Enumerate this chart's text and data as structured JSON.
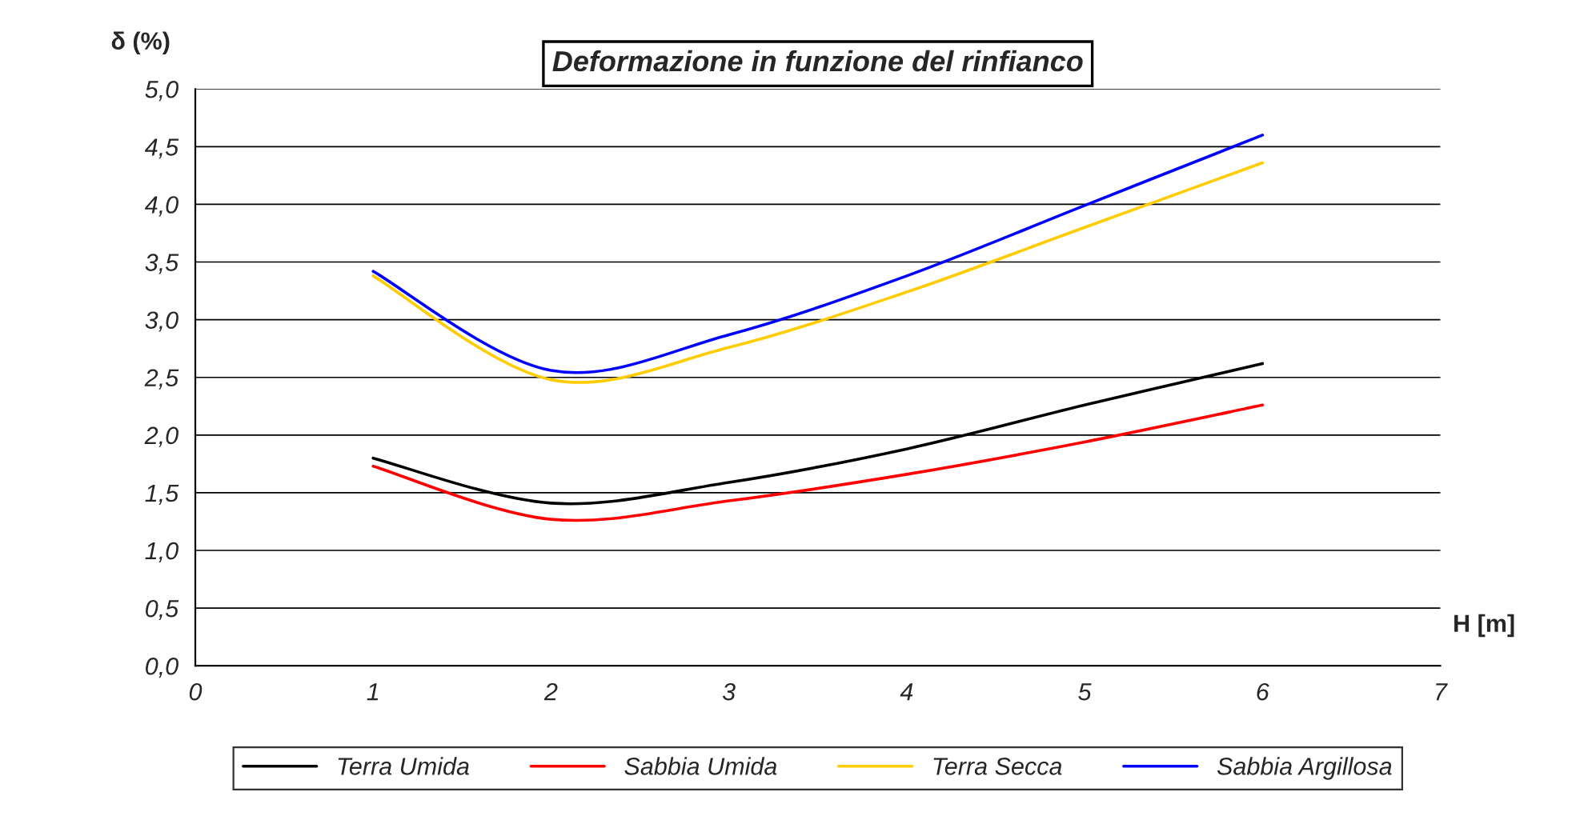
{
  "chart_data": {
    "type": "line",
    "title": "Deformazione in funzione del rinfianco",
    "xlabel": "H [m]",
    "ylabel": "δ (%)",
    "x": [
      1,
      2,
      3,
      4,
      5,
      6
    ],
    "series": [
      {
        "name": "Terra Umida",
        "color": "#000000",
        "values": [
          1.8,
          1.41,
          1.59,
          1.88,
          2.26,
          2.62
        ]
      },
      {
        "name": "Sabbia Umida",
        "color": "#ff0000",
        "values": [
          1.73,
          1.27,
          1.43,
          1.66,
          1.94,
          2.26
        ]
      },
      {
        "name": "Terra Secca",
        "color": "#ffcc00",
        "values": [
          3.38,
          2.48,
          2.76,
          3.24,
          3.8,
          4.36
        ]
      },
      {
        "name": "Sabbia Argillosa",
        "color": "#0000ff",
        "values": [
          3.42,
          2.56,
          2.87,
          3.38,
          3.99,
          4.6
        ]
      }
    ],
    "xlim": [
      0,
      7
    ],
    "xticks": [
      0,
      1,
      2,
      3,
      4,
      5,
      6,
      7
    ],
    "ylim": [
      0,
      5
    ],
    "yticks": [
      {
        "value": 0,
        "label": "0,0"
      },
      {
        "value": 0.5,
        "label": "0,5"
      },
      {
        "value": 1,
        "label": "1,0"
      },
      {
        "value": 1.5,
        "label": "1,5"
      },
      {
        "value": 2,
        "label": "2,0"
      },
      {
        "value": 2.5,
        "label": "2,5"
      },
      {
        "value": 3,
        "label": "3,0"
      },
      {
        "value": 3.5,
        "label": "3,5"
      },
      {
        "value": 4,
        "label": "4,0"
      },
      {
        "value": 4.5,
        "label": "4,5"
      },
      {
        "value": 5,
        "label": "5,0"
      }
    ],
    "grid": "y",
    "legend": "bottom",
    "marker": "none",
    "line_style": "solid"
  }
}
